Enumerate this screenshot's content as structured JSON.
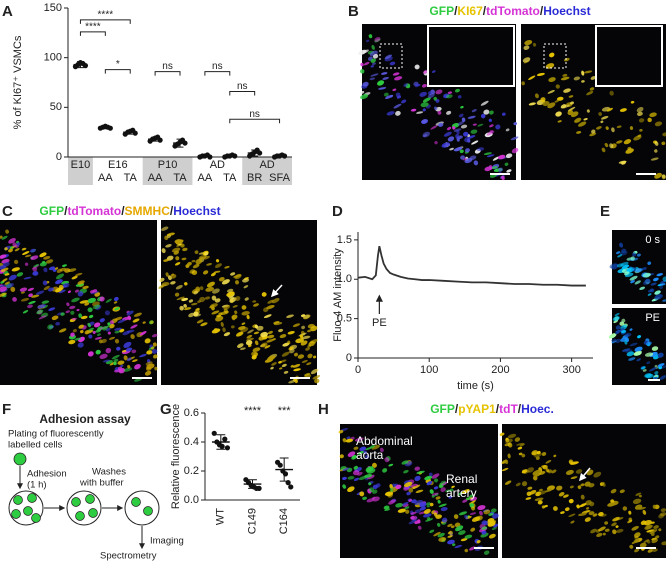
{
  "labels": [
    "A",
    "B",
    "C",
    "D",
    "E",
    "F",
    "G",
    "H"
  ],
  "chart_data": [
    {
      "type": "dot",
      "y_label": "% of KI67⁺ VSMCs",
      "groups": [
        {
          "name": "E10",
          "count": 1
        },
        {
          "name": "E16",
          "count": 2
        },
        {
          "name": "P10",
          "count": 2
        },
        {
          "name": "AD",
          "count": 2
        },
        {
          "name": "AD",
          "count": 2
        }
      ],
      "categories": [
        null,
        "AA",
        "TA",
        "AA",
        "TA",
        "AA",
        "TA",
        "BR",
        "SFA"
      ],
      "values": [
        93,
        30,
        25,
        18,
        14,
        1,
        1,
        4,
        1
      ],
      "errors": [
        3,
        1.5,
        2,
        2,
        4,
        0.8,
        0.8,
        3,
        0.8
      ],
      "points": [
        [
          91,
          93,
          95,
          94,
          92
        ],
        [
          29,
          30,
          31,
          30,
          29
        ],
        [
          23,
          25,
          26,
          27,
          24
        ],
        [
          16,
          18,
          19,
          20,
          17
        ],
        [
          11,
          13,
          15,
          17,
          14
        ],
        [
          0,
          1,
          1,
          2,
          0
        ],
        [
          0,
          1,
          1,
          2,
          1
        ],
        [
          1,
          3,
          5,
          7,
          4
        ],
        [
          0,
          1,
          1,
          2,
          1
        ]
      ],
      "ylim": [
        0,
        150
      ],
      "yticks": [
        0,
        50,
        100,
        150
      ],
      "color": "#111111",
      "annotations": [
        {
          "text": "****",
          "from": 0,
          "to": 2,
          "y": 138
        },
        {
          "text": "****",
          "from": 0,
          "to": 1,
          "y": 126
        },
        {
          "text": "*",
          "from": 1,
          "to": 2,
          "y": 88
        },
        {
          "text": "ns",
          "from": 3,
          "to": 4,
          "y": 86
        },
        {
          "text": "ns",
          "from": 5,
          "to": 6,
          "y": 86
        },
        {
          "text": "ns",
          "from": 6,
          "to": 7,
          "y": 66
        },
        {
          "text": "ns",
          "from": 6,
          "to": 8,
          "y": 38
        }
      ]
    },
    {
      "type": "line",
      "y_label": "Fluo-4 AM intensity",
      "x_label": "time (s)",
      "x": [
        0,
        10,
        20,
        25,
        28,
        30,
        33,
        36,
        40,
        45,
        50,
        60,
        70,
        80,
        90,
        100,
        120,
        140,
        160,
        180,
        200,
        220,
        240,
        260,
        280,
        300,
        320
      ],
      "values": [
        1.02,
        1.03,
        1.0,
        1.05,
        1.3,
        1.42,
        1.3,
        1.2,
        1.13,
        1.08,
        1.06,
        1.03,
        1.01,
        1.0,
        0.99,
        0.99,
        0.98,
        0.97,
        0.96,
        0.96,
        0.95,
        0.94,
        0.94,
        0.93,
        0.93,
        0.92,
        0.92
      ],
      "xlim": [
        0,
        330
      ],
      "ylim": [
        0,
        1.6
      ],
      "xticks": [
        0,
        100,
        200,
        300
      ],
      "yticks": [
        0,
        0.5,
        {
          "value": 1,
          "label": "1.0"
        },
        1.5
      ],
      "annotation": {
        "text": "PE",
        "x": 30
      },
      "color": "#333333"
    },
    {
      "type": "dot",
      "y_label": "Relative fluorescence",
      "categories": [
        "WT",
        "C149",
        "C164"
      ],
      "values": [
        0.4,
        0.11,
        0.21
      ],
      "errors": [
        0.05,
        0.03,
        0.08
      ],
      "points": [
        [
          0.46,
          0.4,
          0.38,
          0.37,
          0.42,
          0.36
        ],
        [
          0.14,
          0.12,
          0.1,
          0.09,
          0.08,
          0.08
        ],
        [
          0.26,
          0.24,
          0.2,
          0.18,
          0.12,
          0.09
        ]
      ],
      "significance": [
        null,
        "****",
        "***"
      ],
      "ylim": [
        0,
        0.6
      ],
      "yticks": [
        {
          "value": 0,
          "label": "0.0"
        },
        0.2,
        0.4,
        0.6
      ],
      "color": "#111111"
    }
  ],
  "panel_b": {
    "legend": [
      {
        "text": "GFP",
        "color": "#2ecc40"
      },
      {
        "text": "/",
        "color": "#222222"
      },
      {
        "text": "KI67",
        "color": "#e6c300"
      },
      {
        "text": "/",
        "color": "#222222"
      },
      {
        "text": "tdTomato",
        "color": "#d633d6"
      },
      {
        "text": "/",
        "color": "#222222"
      },
      {
        "text": "Hoechst",
        "color": "#2a2ad6"
      }
    ]
  },
  "panel_c": {
    "legend": [
      {
        "text": "GFP",
        "color": "#2ecc40"
      },
      {
        "text": "/",
        "color": "#222222"
      },
      {
        "text": "tdTomato",
        "color": "#d633d6"
      },
      {
        "text": "/",
        "color": "#222222"
      },
      {
        "text": "SMMHC",
        "color": "#e6a800"
      },
      {
        "text": "/",
        "color": "#222222"
      },
      {
        "text": "Hoechst",
        "color": "#2a2ad6"
      }
    ]
  },
  "panel_e": {
    "labels": [
      "0 s",
      "PE"
    ]
  },
  "panel_f": {
    "title": "Adhesion assay",
    "steps": [
      "Plating of fluorescently",
      "labelled cells",
      "Adhesion",
      "(1 h)",
      "Washes",
      "with buffer",
      "Imaging",
      "Spectrometry"
    ]
  },
  "panel_h": {
    "legend": [
      {
        "text": "GFP",
        "color": "#2ecc40"
      },
      {
        "text": "/",
        "color": "#222222"
      },
      {
        "text": "pYAP1",
        "color": "#e6c300"
      },
      {
        "text": "/",
        "color": "#222222"
      },
      {
        "text": "tdT",
        "color": "#d633d6"
      },
      {
        "text": "/",
        "color": "#222222"
      },
      {
        "text": "Hoec.",
        "color": "#2a2ad6"
      }
    ],
    "annotations": [
      "Abdominal",
      "aorta",
      "Renal",
      "artery"
    ]
  }
}
